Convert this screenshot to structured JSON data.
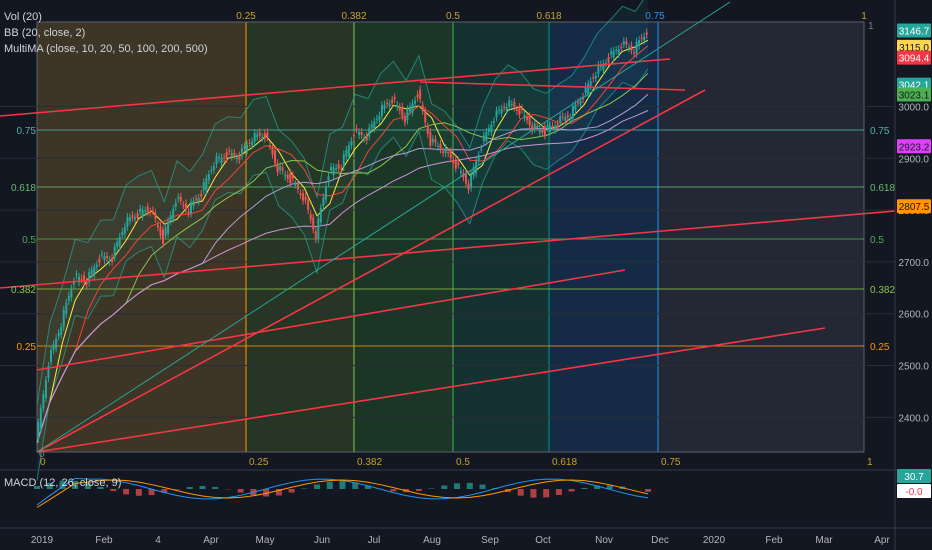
{
  "indicators": {
    "vol": "Vol (20)",
    "bb": "BB (20, close, 2)",
    "multima": "MultiMA (close, 10, 20, 50, 100, 200, 500)",
    "macd": "MACD (12, 26, close, 9)"
  },
  "price_tags": [
    {
      "text": "3146.7",
      "bg": "#26a69a",
      "fg": "#ffffff",
      "price": 3146.7
    },
    {
      "text": "3115.0",
      "bg": "#ffd54f",
      "fg": "#131722",
      "price": 3115.0
    },
    {
      "text": "3094.4",
      "bg": "#f23645",
      "fg": "#ffffff",
      "price": 3094.4
    },
    {
      "text": "3042.1",
      "bg": "#26a69a",
      "fg": "#ffffff",
      "price": 3042.1
    },
    {
      "text": "3023.1",
      "bg": "#4caf50",
      "fg": "#131722",
      "price": 3023.1
    },
    {
      "text": "2923.2",
      "bg": "#e040fb",
      "fg": "#131722",
      "price": 2923.2
    },
    {
      "text": "2807.5",
      "bg": "#ff9800",
      "fg": "#131722",
      "price": 2807.5
    }
  ],
  "macd_tags": [
    {
      "text": "30.7",
      "bg": "#26a69a",
      "fg": "#ffffff"
    },
    {
      "text": "-0.0",
      "bg": "#ffffff",
      "fg": "#f23645"
    }
  ],
  "colors": {
    "background": "#131722",
    "up": "#26a69a",
    "down": "#ef5350",
    "trendline": "#f23645",
    "bb_band": "#26a69a",
    "macd_line": "#2196f3",
    "signal_line": "#ff9800"
  },
  "chart_data": {
    "type": "candlestick",
    "y_ticks": [
      2400,
      2500,
      2600,
      2700,
      2800,
      2900,
      3000
    ],
    "y_tick_labels": [
      "2400.0",
      "2500.0",
      "2600.0",
      "2700.0",
      "2800.0",
      "2900.0",
      "3000.0"
    ],
    "ylim": [
      2330,
      3170
    ],
    "x_labels": [
      "2019",
      "Feb",
      "4",
      "Apr",
      "May",
      "Jun",
      "Jul",
      "Aug",
      "Sep",
      "Oct",
      "Nov",
      "Dec",
      "2020",
      "Feb",
      "Mar",
      "Apr"
    ],
    "fib_vertical_top": [
      "0.25",
      "0.382",
      "0.5",
      "0.618",
      "1"
    ],
    "fib_vertical_bottom": [
      "0",
      "0.25",
      "0.382",
      "0.5",
      "0.618",
      "0.75",
      "1"
    ],
    "fib_corner_labels": [
      "0",
      "1",
      "0.75"
    ],
    "fib_levels_left": [
      "0.75",
      "0.618",
      "0.5",
      "0.382",
      "0.25"
    ],
    "fib_levels_right": [
      "0.75",
      "0.618",
      "0.5",
      "0.382",
      "0.25"
    ],
    "close_path": [
      [
        "2018-12-24",
        2351
      ],
      [
        "2018-12-31",
        2507
      ],
      [
        "2019-01-07",
        2582
      ],
      [
        "2019-01-14",
        2670
      ],
      [
        "2019-01-21",
        2664
      ],
      [
        "2019-01-28",
        2707
      ],
      [
        "2019-02-04",
        2708
      ],
      [
        "2019-02-11",
        2775
      ],
      [
        "2019-02-18",
        2793
      ],
      [
        "2019-02-25",
        2803
      ],
      [
        "2019-03-04",
        2743
      ],
      [
        "2019-03-11",
        2822
      ],
      [
        "2019-03-18",
        2801
      ],
      [
        "2019-03-25",
        2834
      ],
      [
        "2019-04-01",
        2893
      ],
      [
        "2019-04-08",
        2907
      ],
      [
        "2019-04-15",
        2905
      ],
      [
        "2019-04-22",
        2940
      ],
      [
        "2019-04-29",
        2946
      ],
      [
        "2019-05-06",
        2881
      ],
      [
        "2019-05-13",
        2860
      ],
      [
        "2019-05-20",
        2826
      ],
      [
        "2019-05-27",
        2752
      ],
      [
        "2019-06-03",
        2873
      ],
      [
        "2019-06-10",
        2887
      ],
      [
        "2019-06-17",
        2950
      ],
      [
        "2019-06-24",
        2942
      ],
      [
        "2019-07-01",
        2990
      ],
      [
        "2019-07-08",
        3014
      ],
      [
        "2019-07-15",
        2977
      ],
      [
        "2019-07-22",
        3025
      ],
      [
        "2019-07-29",
        2932
      ],
      [
        "2019-08-05",
        2918
      ],
      [
        "2019-08-12",
        2888
      ],
      [
        "2019-08-19",
        2847
      ],
      [
        "2019-08-26",
        2926
      ],
      [
        "2019-09-02",
        2979
      ],
      [
        "2019-09-09",
        3007
      ],
      [
        "2019-09-16",
        2992
      ],
      [
        "2019-09-23",
        2961
      ],
      [
        "2019-09-30",
        2952
      ],
      [
        "2019-10-07",
        2970
      ],
      [
        "2019-10-14",
        2986
      ],
      [
        "2019-10-21",
        3022
      ],
      [
        "2019-10-28",
        3067
      ],
      [
        "2019-11-04",
        3093
      ],
      [
        "2019-11-11",
        3120
      ],
      [
        "2019-11-18",
        3110
      ],
      [
        "2019-11-25",
        3146
      ]
    ],
    "macd_range": [
      -60,
      60
    ]
  }
}
